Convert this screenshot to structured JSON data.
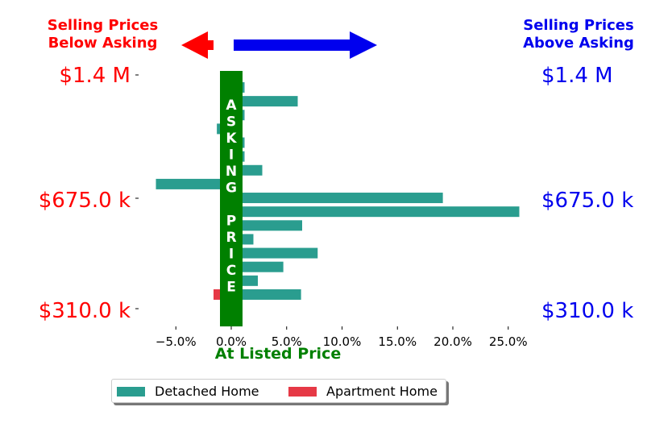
{
  "header": {
    "left_line1": "Selling Prices",
    "left_line2": "Below Asking",
    "right_line1": "Selling Prices",
    "right_line2": "Above Asking"
  },
  "colors": {
    "detached": "#2a9d8f",
    "apartment": "#e63946",
    "below": "#ff0000",
    "above": "#0000ee",
    "asking_band": "#008000"
  },
  "chart_data": {
    "type": "bar",
    "orientation": "horizontal",
    "xlabel": "At Listed Price",
    "xlim": [
      -7.0,
      26.0
    ],
    "xticks": [
      "−5.0%",
      "0.0%",
      "5.0%",
      "10.0%",
      "15.0%",
      "20.0%",
      "25.0%"
    ],
    "xtick_values": [
      -5,
      0,
      5,
      10,
      15,
      20,
      25
    ],
    "yticks_left": [
      "$1.4 M",
      "$675.0 k",
      "$310.0 k"
    ],
    "yticks_right": [
      "$1.4 M",
      "$675.0 k",
      "$310.0 k"
    ],
    "band_text": [
      "A",
      "S",
      "K",
      "I",
      "N",
      "G",
      "",
      "P",
      "R",
      "I",
      "C",
      "E"
    ],
    "series": [
      {
        "name": "Detached Home",
        "values": [
          1.2,
          6.0,
          1.2,
          -1.3,
          1.2,
          1.2,
          2.8,
          -6.8,
          19.1,
          26.0,
          6.4,
          2.0,
          7.8,
          4.7,
          2.4,
          6.3
        ]
      },
      {
        "name": "Apartment Home",
        "values": [
          null,
          null,
          null,
          null,
          null,
          null,
          null,
          null,
          null,
          null,
          null,
          null,
          null,
          null,
          null,
          -1.6
        ]
      }
    ]
  },
  "legend": {
    "detached": "Detached Home",
    "apartment": "Apartment Home"
  }
}
